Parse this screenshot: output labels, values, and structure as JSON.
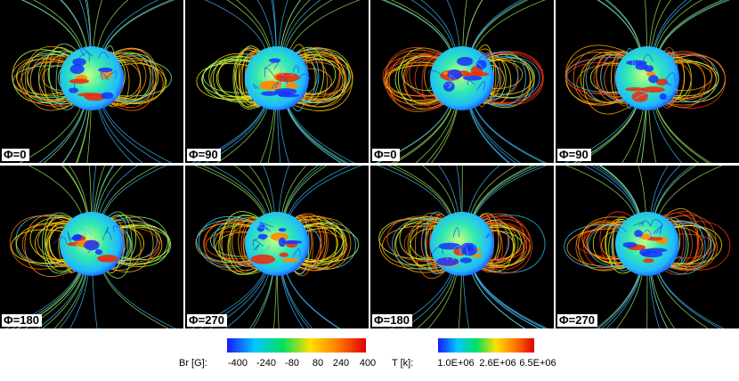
{
  "panels": [
    {
      "label": "Φ=0"
    },
    {
      "label": "Φ=90"
    },
    {
      "label": "Φ=0"
    },
    {
      "label": "Φ=90"
    },
    {
      "label": "Φ=180"
    },
    {
      "label": "Φ=270"
    },
    {
      "label": "Φ=180"
    },
    {
      "label": "Φ=270"
    }
  ],
  "colorbars": [
    {
      "label": "Br [G]:",
      "ticks": [
        "-400",
        "-240",
        "-80",
        "80",
        "240",
        "400"
      ],
      "colors": [
        "#1a1aff",
        "#00c8ff",
        "#00e060",
        "#ffe000",
        "#ff7a00",
        "#e00000"
      ]
    },
    {
      "label": "T [k]:",
      "ticks": [
        "1.0E+06",
        "2.6E+06",
        "6.5E+06"
      ],
      "colors": [
        "#1a1aff",
        "#00c8ff",
        "#00e060",
        "#ffe000",
        "#ff7a00",
        "#e00000"
      ]
    }
  ]
}
